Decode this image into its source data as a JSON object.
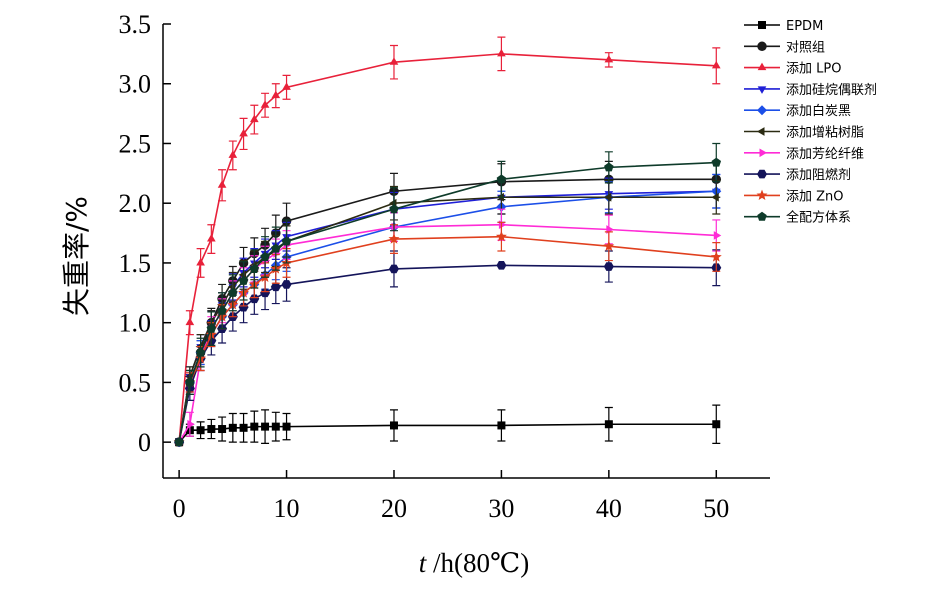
{
  "chart_data": {
    "type": "line",
    "xlabel_italic": "t",
    "xlabel_rest": " /h(80℃)",
    "ylabel": "失重率/%",
    "xlim": [
      -1.5,
      55
    ],
    "ylim": [
      -0.3,
      3.5
    ],
    "x_ticks": [
      0,
      10,
      20,
      30,
      40,
      50
    ],
    "y_ticks": [
      0,
      0.5,
      1.0,
      1.5,
      2.0,
      2.5,
      3.0,
      3.5
    ],
    "y_tick_labels": [
      "0",
      "0.5",
      "1.0",
      "1.5",
      "2.0",
      "2.5",
      "3.0",
      "3.5"
    ],
    "legend_position": "top-right",
    "series": [
      {
        "name": "EPDM",
        "color": "#000000",
        "marker": "square",
        "x": [
          0,
          1,
          2,
          3,
          4,
          5,
          6,
          7,
          8,
          9,
          10,
          20,
          30,
          40,
          50
        ],
        "y": [
          0,
          0.1,
          0.1,
          0.11,
          0.11,
          0.12,
          0.12,
          0.13,
          0.13,
          0.13,
          0.13,
          0.14,
          0.14,
          0.15,
          0.15
        ],
        "err": [
          0,
          0.05,
          0.07,
          0.08,
          0.1,
          0.12,
          0.12,
          0.13,
          0.14,
          0.12,
          0.11,
          0.13,
          0.13,
          0.14,
          0.16
        ]
      },
      {
        "name": "对照组",
        "color": "#1a1a1a",
        "marker": "circle",
        "x": [
          0,
          1,
          2,
          3,
          4,
          5,
          6,
          7,
          8,
          9,
          10,
          20,
          30,
          40,
          50
        ],
        "y": [
          0,
          0.5,
          0.75,
          1.0,
          1.2,
          1.35,
          1.5,
          1.58,
          1.65,
          1.75,
          1.85,
          2.1,
          2.18,
          2.2,
          2.2
        ],
        "err": [
          0,
          0.1,
          0.1,
          0.12,
          0.12,
          0.12,
          0.13,
          0.13,
          0.14,
          0.15,
          0.15,
          0.15,
          0.15,
          0.15,
          0.15
        ]
      },
      {
        "name": "添加 LPO",
        "color": "#e8213a",
        "marker": "triangle-up",
        "x": [
          0,
          1,
          2,
          3,
          4,
          5,
          6,
          7,
          8,
          9,
          10,
          20,
          30,
          40,
          50
        ],
        "y": [
          0,
          1.0,
          1.5,
          1.7,
          2.15,
          2.4,
          2.58,
          2.7,
          2.82,
          2.9,
          2.97,
          3.18,
          3.25,
          3.2,
          3.15
        ],
        "err": [
          0,
          0.1,
          0.12,
          0.12,
          0.13,
          0.12,
          0.13,
          0.12,
          0.1,
          0.1,
          0.1,
          0.14,
          0.14,
          0.06,
          0.15
        ]
      },
      {
        "name": "添加硅烷偶联剂",
        "color": "#1f1fd6",
        "marker": "triangle-down",
        "x": [
          0,
          1,
          2,
          3,
          4,
          5,
          6,
          7,
          8,
          9,
          10,
          20,
          30,
          40,
          50
        ],
        "y": [
          0,
          0.55,
          0.8,
          1.0,
          1.15,
          1.3,
          1.42,
          1.5,
          1.58,
          1.65,
          1.72,
          1.95,
          2.05,
          2.08,
          2.1
        ],
        "err": [
          0,
          0.08,
          0.1,
          0.1,
          0.1,
          0.11,
          0.12,
          0.12,
          0.12,
          0.12,
          0.12,
          0.14,
          0.14,
          0.13,
          0.14
        ]
      },
      {
        "name": "添加白炭黑",
        "color": "#1c4fe8",
        "marker": "diamond",
        "x": [
          0,
          1,
          2,
          3,
          4,
          5,
          6,
          7,
          8,
          9,
          10,
          20,
          30,
          40,
          50
        ],
        "y": [
          0,
          0.5,
          0.75,
          0.9,
          1.05,
          1.15,
          1.25,
          1.32,
          1.4,
          1.48,
          1.55,
          1.8,
          1.97,
          2.05,
          2.1
        ],
        "err": [
          0,
          0.08,
          0.1,
          0.1,
          0.1,
          0.1,
          0.11,
          0.11,
          0.12,
          0.12,
          0.12,
          0.12,
          0.13,
          0.13,
          0.14
        ]
      },
      {
        "name": "添加增粘树脂",
        "color": "#2b2b12",
        "marker": "triangle-left",
        "x": [
          0,
          1,
          2,
          3,
          4,
          5,
          6,
          7,
          8,
          9,
          10,
          20,
          30,
          40,
          50
        ],
        "y": [
          0,
          0.55,
          0.8,
          1.0,
          1.15,
          1.3,
          1.4,
          1.48,
          1.55,
          1.6,
          1.68,
          2.0,
          2.05,
          2.05,
          2.05
        ],
        "err": [
          0,
          0.08,
          0.1,
          0.1,
          0.1,
          0.12,
          0.12,
          0.12,
          0.13,
          0.13,
          0.13,
          0.14,
          0.14,
          0.14,
          0.14
        ]
      },
      {
        "name": "添加芳纶纤维",
        "color": "#ff2bd6",
        "marker": "triangle-right",
        "x": [
          0,
          1,
          2,
          3,
          4,
          5,
          6,
          7,
          8,
          9,
          10,
          20,
          30,
          40,
          50
        ],
        "y": [
          0,
          0.15,
          0.7,
          0.95,
          1.1,
          1.25,
          1.35,
          1.45,
          1.52,
          1.58,
          1.65,
          1.8,
          1.82,
          1.78,
          1.73
        ],
        "err": [
          0,
          0.1,
          0.1,
          0.1,
          0.1,
          0.1,
          0.11,
          0.11,
          0.12,
          0.12,
          0.12,
          0.12,
          0.13,
          0.12,
          0.13
        ]
      },
      {
        "name": "添加阻燃剂",
        "color": "#14145a",
        "marker": "hexagon",
        "x": [
          0,
          1,
          2,
          3,
          4,
          5,
          6,
          7,
          8,
          9,
          10,
          20,
          30,
          40,
          50
        ],
        "y": [
          0,
          0.45,
          0.7,
          0.85,
          0.95,
          1.05,
          1.13,
          1.2,
          1.25,
          1.3,
          1.32,
          1.45,
          1.48,
          1.47,
          1.46
        ],
        "err": [
          0,
          0.1,
          0.1,
          0.12,
          0.12,
          0.12,
          0.13,
          0.13,
          0.14,
          0.14,
          0.14,
          0.15,
          0.0,
          0.13,
          0.15
        ]
      },
      {
        "name": "添加 ZnO",
        "color": "#e0401e",
        "marker": "star",
        "x": [
          0,
          1,
          2,
          3,
          4,
          5,
          6,
          7,
          8,
          9,
          10,
          20,
          30,
          40,
          50
        ],
        "y": [
          0,
          0.5,
          0.7,
          0.9,
          1.05,
          1.15,
          1.25,
          1.32,
          1.38,
          1.45,
          1.5,
          1.7,
          1.72,
          1.64,
          1.55
        ],
        "err": [
          0,
          0.08,
          0.1,
          0.1,
          0.1,
          0.1,
          0.11,
          0.11,
          0.12,
          0.12,
          0.12,
          0.12,
          0.12,
          0.12,
          0.12
        ]
      },
      {
        "name": "全配方体系",
        "color": "#0e3b2a",
        "marker": "pentagon",
        "x": [
          0,
          1,
          2,
          3,
          4,
          5,
          6,
          7,
          8,
          9,
          10,
          20,
          30,
          40,
          50
        ],
        "y": [
          0,
          0.5,
          0.75,
          0.95,
          1.1,
          1.25,
          1.35,
          1.45,
          1.55,
          1.62,
          1.68,
          1.95,
          2.2,
          2.3,
          2.34
        ],
        "err": [
          0,
          0.1,
          0.12,
          0.14,
          0.15,
          0.15,
          0.16,
          0.16,
          0.17,
          0.18,
          0.18,
          0.18,
          0.15,
          0.13,
          0.16
        ]
      }
    ]
  }
}
